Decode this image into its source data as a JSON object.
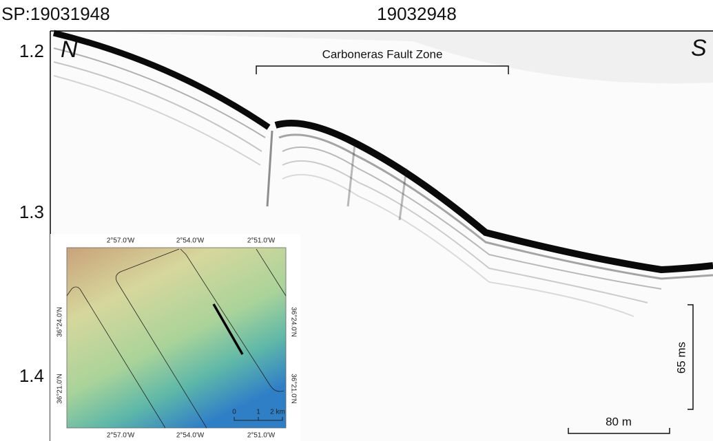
{
  "header": {
    "shot_point": "SP:19031948",
    "shot_point_end": "19032948"
  },
  "axis": {
    "labels": [
      "1.2",
      "1.3",
      "1.4"
    ]
  },
  "profile": {
    "north": "N",
    "south": "S",
    "fault_zone": "Carboneras Fault Zone",
    "vertical_scale": "65 ms",
    "horizontal_scale": "80 m"
  },
  "inset": {
    "top_labels": [
      "2°57.0'W",
      "2°54.0'W",
      "2°51.0'W"
    ],
    "bottom_labels": [
      "2°57.0'W",
      "2°54.0'W",
      "2°51.0'W"
    ],
    "left_labels": [
      "36°24.0'N",
      "36°21.0'N"
    ],
    "right_labels": [
      "36°24.0'N",
      "36°21.0'N"
    ],
    "scale_labels": [
      "0",
      "1",
      "2 km"
    ]
  }
}
